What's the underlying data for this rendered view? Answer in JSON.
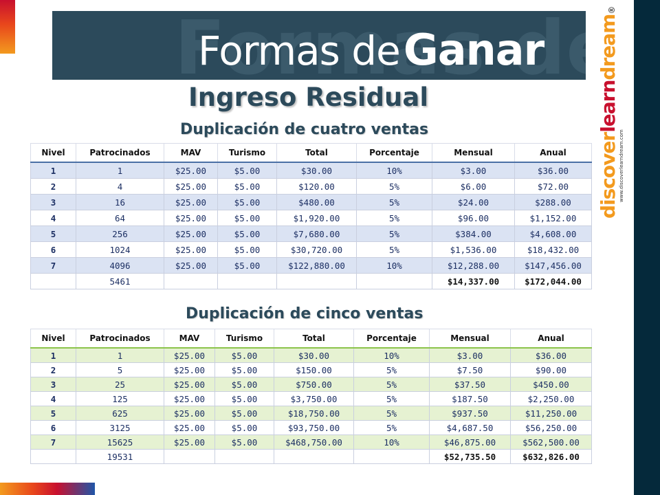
{
  "banner": {
    "ghost_text": "Formas de",
    "title_part1": "Formas de",
    "title_part2": "Ganar"
  },
  "subtitle": "Ingreso Residual",
  "logo": {
    "part1": "discover",
    "part2": "learn",
    "part3": "dream",
    "registered": "®",
    "url": "www.discoverlearndream.com"
  },
  "colors": {
    "banner_bg": "#2c4a5b",
    "right_bar": "#05293b",
    "table1_band": "#dbe3f3",
    "table2_band": "#e6f2d2",
    "logo_orange": "#f39a1e",
    "logo_red": "#c8102e"
  },
  "headers": [
    "Nivel",
    "Patrocinados",
    "MAV",
    "Turismo",
    "Total",
    "Porcentaje",
    "Mensual",
    "Anual"
  ],
  "table1": {
    "title": "Duplicación de cuatro ventas",
    "rows": [
      [
        "1",
        "1",
        "$25.00",
        "$5.00",
        "$30.00",
        "10%",
        "$3.00",
        "$36.00"
      ],
      [
        "2",
        "4",
        "$25.00",
        "$5.00",
        "$120.00",
        "5%",
        "$6.00",
        "$72.00"
      ],
      [
        "3",
        "16",
        "$25.00",
        "$5.00",
        "$480.00",
        "5%",
        "$24.00",
        "$288.00"
      ],
      [
        "4",
        "64",
        "$25.00",
        "$5.00",
        "$1,920.00",
        "5%",
        "$96.00",
        "$1,152.00"
      ],
      [
        "5",
        "256",
        "$25.00",
        "$5.00",
        "$7,680.00",
        "5%",
        "$384.00",
        "$4,608.00"
      ],
      [
        "6",
        "1024",
        "$25.00",
        "$5.00",
        "$30,720.00",
        "5%",
        "$1,536.00",
        "$18,432.00"
      ],
      [
        "7",
        "4096",
        "$25.00",
        "$5.00",
        "$122,880.00",
        "10%",
        "$12,288.00",
        "$147,456.00"
      ]
    ],
    "totals": [
      "",
      "5461",
      "",
      "",
      "",
      "",
      "$14,337.00",
      "$172,044.00"
    ]
  },
  "table2": {
    "title": "Duplicación de cinco ventas",
    "rows": [
      [
        "1",
        "1",
        "$25.00",
        "$5.00",
        "$30.00",
        "10%",
        "$3.00",
        "$36.00"
      ],
      [
        "2",
        "5",
        "$25.00",
        "$5.00",
        "$150.00",
        "5%",
        "$7.50",
        "$90.00"
      ],
      [
        "3",
        "25",
        "$25.00",
        "$5.00",
        "$750.00",
        "5%",
        "$37.50",
        "$450.00"
      ],
      [
        "4",
        "125",
        "$25.00",
        "$5.00",
        "$3,750.00",
        "5%",
        "$187.50",
        "$2,250.00"
      ],
      [
        "5",
        "625",
        "$25.00",
        "$5.00",
        "$18,750.00",
        "5%",
        "$937.50",
        "$11,250.00"
      ],
      [
        "6",
        "3125",
        "$25.00",
        "$5.00",
        "$93,750.00",
        "5%",
        "$4,687.50",
        "$56,250.00"
      ],
      [
        "7",
        "15625",
        "$25.00",
        "$5.00",
        "$468,750.00",
        "10%",
        "$46,875.00",
        "$562,500.00"
      ]
    ],
    "totals": [
      "",
      "19531",
      "",
      "",
      "",
      "",
      "$52,735.50",
      "$632,826.00"
    ]
  }
}
